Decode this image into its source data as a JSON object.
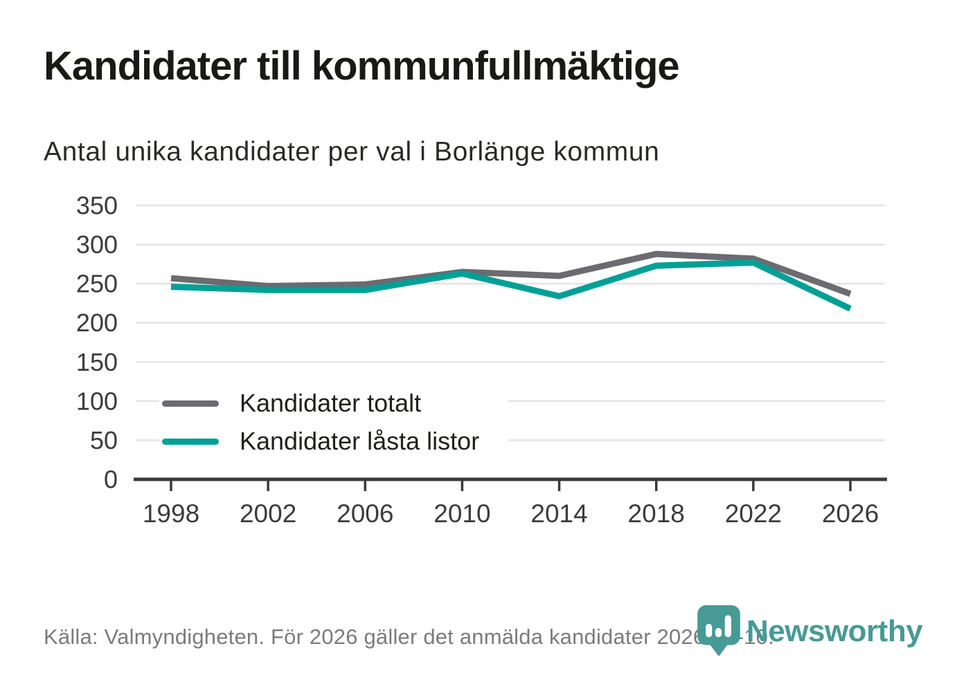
{
  "header": {
    "title": "Kandidater till kommunfullmäktige",
    "subtitle": "Antal unika kandidater per val i Borlänge kommun"
  },
  "chart_data": {
    "type": "line",
    "x": [
      1998,
      2002,
      2006,
      2010,
      2014,
      2018,
      2022,
      2026
    ],
    "series": [
      {
        "name": "Kandidater totalt",
        "color": "#6b6b70",
        "values": [
          257,
          247,
          249,
          265,
          260,
          288,
          282,
          237
        ]
      },
      {
        "name": "Kandidater låsta listor",
        "color": "#00a096",
        "values": [
          246,
          242,
          242,
          263,
          234,
          273,
          277,
          218
        ]
      }
    ],
    "title": "Kandidater till kommunfullmäktige",
    "subtitle": "Antal unika kandidater per val i Borlänge kommun",
    "xlabel": "",
    "ylabel": "",
    "ylim": [
      0,
      350
    ],
    "ytick_step": 50,
    "grid": "horizontal-only",
    "legend_position": "inside-left-middle"
  },
  "footer": {
    "source": "Källa: Valmyndigheten. För 2026 gäller det anmälda kandidater 2026-04-10.",
    "brand": "Newsworthy"
  },
  "colors": {
    "title_text": "#1a1a15",
    "subtitle_text": "#2a2a26",
    "grid_line": "#e4e4e4",
    "axis_line": "#3a3a3a",
    "tick_label": "#3b3b3b",
    "legend_text": "#1f1f1c",
    "footer_text": "#7b7b7b",
    "brand_teal": "#479a95",
    "series_gray": "#6b6b70",
    "series_teal": "#00a096"
  }
}
